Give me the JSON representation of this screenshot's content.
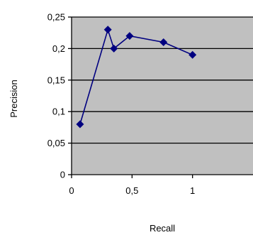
{
  "chart_data": {
    "type": "line",
    "xlabel": "Recall",
    "ylabel": "Precision",
    "xlim": [
      0,
      1.5
    ],
    "ylim": [
      0,
      0.25
    ],
    "x_ticks": [
      {
        "value": 0,
        "label": "0"
      },
      {
        "value": 0.5,
        "label": "0,5"
      },
      {
        "value": 1,
        "label": "1"
      }
    ],
    "y_ticks": [
      {
        "value": 0,
        "label": "0"
      },
      {
        "value": 0.05,
        "label": "0,05"
      },
      {
        "value": 0.1,
        "label": "0,1"
      },
      {
        "value": 0.15,
        "label": "0,15"
      },
      {
        "value": 0.2,
        "label": "0,2"
      },
      {
        "value": 0.25,
        "label": "0,25"
      }
    ],
    "grid": "horizontal",
    "legend": "none",
    "series": [
      {
        "points": [
          {
            "x": 0.07,
            "y": 0.08
          },
          {
            "x": 0.3,
            "y": 0.23
          },
          {
            "x": 0.35,
            "y": 0.2
          },
          {
            "x": 0.48,
            "y": 0.22
          },
          {
            "x": 0.76,
            "y": 0.21
          },
          {
            "x": 1.0,
            "y": 0.19
          }
        ]
      }
    ],
    "colors": {
      "plot_background": "#c0c0c0",
      "line": "#000080",
      "grid": "#000000",
      "axis": "#000000"
    }
  }
}
